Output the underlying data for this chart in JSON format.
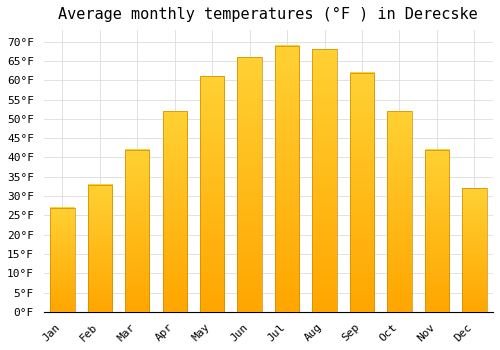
{
  "title": "Average monthly temperatures (°F ) in Derecske",
  "months": [
    "Jan",
    "Feb",
    "Mar",
    "Apr",
    "May",
    "Jun",
    "Jul",
    "Aug",
    "Sep",
    "Oct",
    "Nov",
    "Dec"
  ],
  "values": [
    27,
    33,
    42,
    52,
    61,
    66,
    69,
    68,
    62,
    52,
    42,
    32
  ],
  "bar_color_top": "#FFC125",
  "bar_color_bottom": "#FFA500",
  "bar_edge_color": "#CC8800",
  "background_color": "#FFFFFF",
  "plot_bg_color": "#FFFFFF",
  "grid_color": "#DDDDDD",
  "ylim": [
    0,
    73
  ],
  "yticks": [
    0,
    5,
    10,
    15,
    20,
    25,
    30,
    35,
    40,
    45,
    50,
    55,
    60,
    65,
    70
  ],
  "title_fontsize": 11,
  "tick_fontsize": 8,
  "font_family": "monospace"
}
